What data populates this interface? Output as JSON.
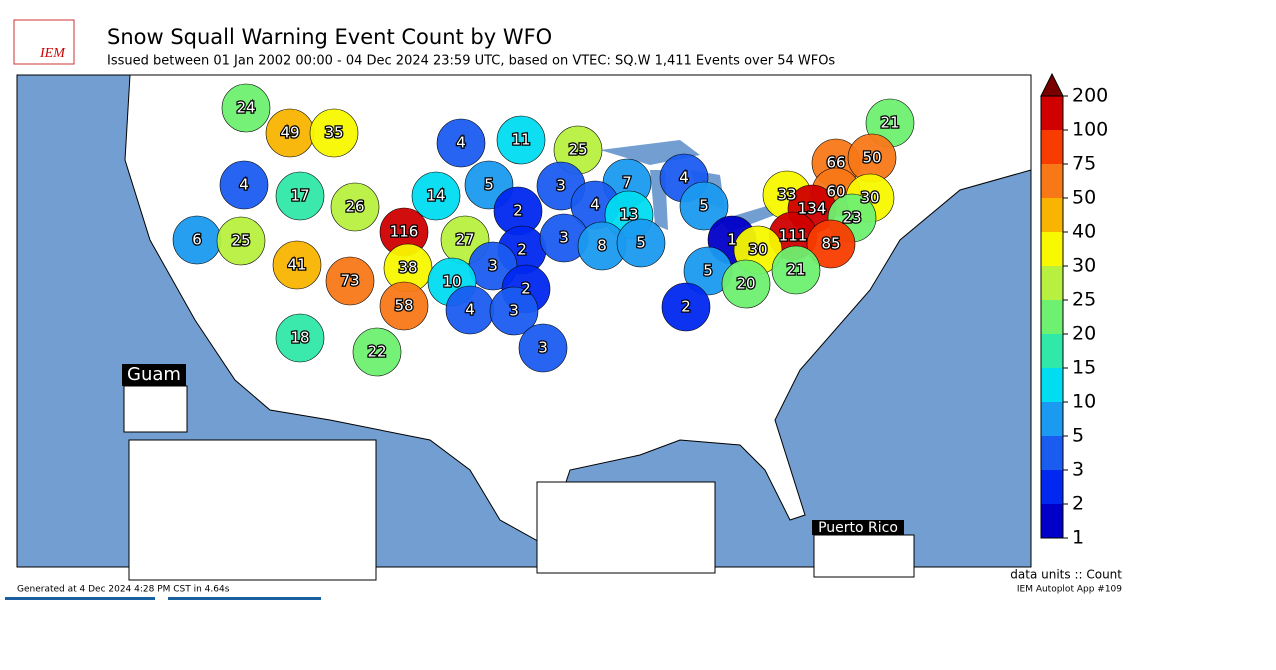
{
  "header": {
    "logo": "IEM",
    "title": "Snow Squall Warning Event Count by WFO",
    "subtitle": "Issued between 01 Jan 2002 00:00 - 04 Dec 2024 23:59 UTC, based on VTEC: SQ.W   1,411 Events over 54 WFOs"
  },
  "map": {
    "values": [
      24,
      49,
      35,
      4,
      11,
      25,
      21,
      66,
      50,
      4,
      17,
      26,
      14,
      5,
      3,
      7,
      4,
      33,
      60,
      30,
      5,
      4,
      13,
      2,
      134,
      23,
      6,
      25,
      116,
      27,
      2,
      3,
      8,
      5,
      1,
      111,
      85,
      30,
      41,
      73,
      38,
      3,
      10,
      2,
      5,
      21,
      20,
      4,
      3,
      58,
      2,
      18,
      22,
      3
    ],
    "insets": [
      "Guam",
      "Puerto Rico"
    ]
  },
  "colorbar": {
    "ticks": [
      1,
      2,
      3,
      5,
      10,
      15,
      20,
      25,
      30,
      40,
      50,
      75,
      100,
      200
    ],
    "colors": [
      "#0000c8",
      "#0028f0",
      "#1a5cf0",
      "#1a9af0",
      "#00dcf0",
      "#30e8a8",
      "#6ef070",
      "#b8f040",
      "#f8f800",
      "#f8b400",
      "#f87818",
      "#f83c00",
      "#d00000"
    ],
    "over_color": "#7a0000"
  },
  "footer": {
    "generated": "Generated at 4 Dec 2024 4:28 PM CST in 4.64s",
    "units": "data units :: Count",
    "app": "IEM Autoplot App #109"
  }
}
